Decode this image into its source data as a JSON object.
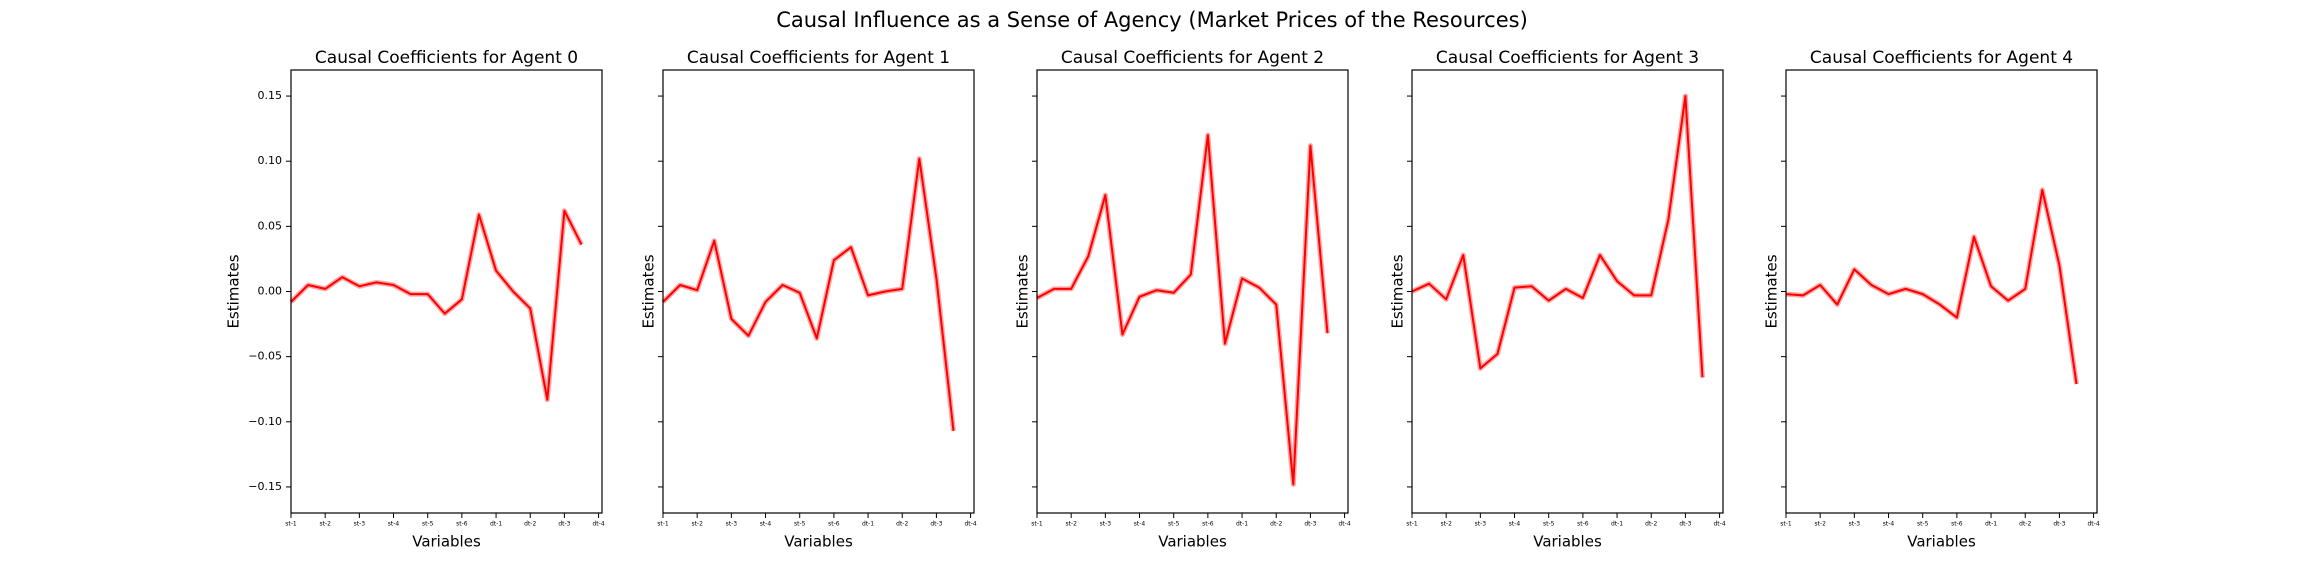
{
  "title": "Causal Influence as a Sense of Agency (Market Prices of the Resources)",
  "chart_data": [
    {
      "type": "line",
      "title": "Causal Coefficients for Agent 0",
      "x_label": "Variables",
      "y_label": "Estimates",
      "ytick_labels": true,
      "x": [
        0,
        1,
        2,
        3,
        4,
        5,
        6,
        7,
        8,
        9,
        10,
        11,
        12,
        13,
        14,
        15,
        16,
        17
      ],
      "xlim": [
        0,
        18.2
      ],
      "ylim": [
        -0.17,
        0.17
      ],
      "xticks": [
        {
          "value": 0,
          "label": "st-1"
        },
        {
          "value": 2,
          "label": "st-2"
        },
        {
          "value": 4,
          "label": "st-3"
        },
        {
          "value": 6,
          "label": "st-4"
        },
        {
          "value": 8,
          "label": "st-5"
        },
        {
          "value": 10,
          "label": "st-6"
        },
        {
          "value": 12,
          "label": "dt-1"
        },
        {
          "value": 14,
          "label": "dt-2"
        },
        {
          "value": 16,
          "label": "dt-3"
        },
        {
          "value": 18,
          "label": "dt-4"
        }
      ],
      "yticks": [
        {
          "value": 0.15,
          "label": "0.15"
        },
        {
          "value": 0.1,
          "label": "0.10"
        },
        {
          "value": 0.05,
          "label": "0.05"
        },
        {
          "value": 0,
          "label": "0.00"
        },
        {
          "value": -0.05,
          "label": "−0.05"
        },
        {
          "value": -0.1,
          "label": "−0.10"
        },
        {
          "value": -0.15,
          "label": "−0.15"
        }
      ],
      "color": "#ff0000",
      "values": [
        -0.008,
        0.005,
        0.002,
        0.011,
        0.004,
        0.007,
        0.005,
        -0.002,
        -0.002,
        -0.017,
        -0.006,
        0.059,
        0.016,
        0.0,
        -0.013,
        -0.083,
        0.062,
        0.036
      ]
    },
    {
      "type": "line",
      "title": "Causal Coefficients for Agent 1",
      "x_label": "Variables",
      "y_label": "Estimates",
      "ytick_labels": false,
      "x": [
        0,
        1,
        2,
        3,
        4,
        5,
        6,
        7,
        8,
        9,
        10,
        11,
        12,
        13,
        14,
        15,
        16,
        17
      ],
      "xlim": [
        0,
        18.2
      ],
      "ylim": [
        -0.17,
        0.17
      ],
      "xticks": [
        {
          "value": 0,
          "label": "st-1"
        },
        {
          "value": 2,
          "label": "st-2"
        },
        {
          "value": 4,
          "label": "st-3"
        },
        {
          "value": 6,
          "label": "st-4"
        },
        {
          "value": 8,
          "label": "st-5"
        },
        {
          "value": 10,
          "label": "st-6"
        },
        {
          "value": 12,
          "label": "dt-1"
        },
        {
          "value": 14,
          "label": "dt-2"
        },
        {
          "value": 16,
          "label": "dt-3"
        },
        {
          "value": 18,
          "label": "dt-4"
        }
      ],
      "yticks": [
        0.15,
        0.1,
        0.05,
        0,
        -0.05,
        -0.1,
        -0.15
      ],
      "color": "#ff0000",
      "values": [
        -0.008,
        0.005,
        0.001,
        0.039,
        -0.021,
        -0.034,
        -0.008,
        0.005,
        -0.001,
        -0.036,
        0.024,
        0.034,
        -0.003,
        0.0,
        0.002,
        0.102,
        0.01,
        -0.107
      ]
    },
    {
      "type": "line",
      "title": "Causal Coefficients for Agent 2",
      "x_label": "Variables",
      "y_label": "Estimates",
      "ytick_labels": false,
      "x": [
        0,
        1,
        2,
        3,
        4,
        5,
        6,
        7,
        8,
        9,
        10,
        11,
        12,
        13,
        14,
        15,
        16,
        17
      ],
      "xlim": [
        0,
        18.2
      ],
      "ylim": [
        -0.17,
        0.17
      ],
      "xticks": [
        {
          "value": 0,
          "label": "st-1"
        },
        {
          "value": 2,
          "label": "st-2"
        },
        {
          "value": 4,
          "label": "st-3"
        },
        {
          "value": 6,
          "label": "st-4"
        },
        {
          "value": 8,
          "label": "st-5"
        },
        {
          "value": 10,
          "label": "st-6"
        },
        {
          "value": 12,
          "label": "dt-1"
        },
        {
          "value": 14,
          "label": "dt-2"
        },
        {
          "value": 16,
          "label": "dt-3"
        },
        {
          "value": 18,
          "label": "dt-4"
        }
      ],
      "yticks": [
        0.15,
        0.1,
        0.05,
        0,
        -0.05,
        -0.1,
        -0.15
      ],
      "color": "#ff0000",
      "values": [
        -0.005,
        0.002,
        0.002,
        0.027,
        0.074,
        -0.033,
        -0.004,
        0.001,
        -0.001,
        0.013,
        0.12,
        -0.04,
        0.01,
        0.003,
        -0.01,
        -0.148,
        0.112,
        -0.032
      ]
    },
    {
      "type": "line",
      "title": "Causal Coefficients for Agent 3",
      "x_label": "Variables",
      "y_label": "Estimates",
      "ytick_labels": false,
      "x": [
        0,
        1,
        2,
        3,
        4,
        5,
        6,
        7,
        8,
        9,
        10,
        11,
        12,
        13,
        14,
        15,
        16,
        17
      ],
      "xlim": [
        0,
        18.2
      ],
      "ylim": [
        -0.17,
        0.17
      ],
      "xticks": [
        {
          "value": 0,
          "label": "st-1"
        },
        {
          "value": 2,
          "label": "st-2"
        },
        {
          "value": 4,
          "label": "st-3"
        },
        {
          "value": 6,
          "label": "st-4"
        },
        {
          "value": 8,
          "label": "st-5"
        },
        {
          "value": 10,
          "label": "st-6"
        },
        {
          "value": 12,
          "label": "dt-1"
        },
        {
          "value": 14,
          "label": "dt-2"
        },
        {
          "value": 16,
          "label": "dt-3"
        },
        {
          "value": 18,
          "label": "dt-4"
        }
      ],
      "yticks": [
        0.15,
        0.1,
        0.05,
        0,
        -0.05,
        -0.1,
        -0.15
      ],
      "color": "#ff0000",
      "values": [
        0.0,
        0.006,
        -0.006,
        0.028,
        -0.059,
        -0.048,
        0.003,
        0.004,
        -0.007,
        0.002,
        -0.005,
        0.028,
        0.008,
        -0.003,
        -0.003,
        0.055,
        0.15,
        -0.066
      ]
    },
    {
      "type": "line",
      "title": "Causal Coefficients for Agent 4",
      "x_label": "Variables",
      "y_label": "Estimates",
      "ytick_labels": false,
      "x": [
        0,
        1,
        2,
        3,
        4,
        5,
        6,
        7,
        8,
        9,
        10,
        11,
        12,
        13,
        14,
        15,
        16,
        17
      ],
      "xlim": [
        0,
        18.2
      ],
      "ylim": [
        -0.17,
        0.17
      ],
      "xticks": [
        {
          "value": 0,
          "label": "st-1"
        },
        {
          "value": 2,
          "label": "st-2"
        },
        {
          "value": 4,
          "label": "st-3"
        },
        {
          "value": 6,
          "label": "st-4"
        },
        {
          "value": 8,
          "label": "st-5"
        },
        {
          "value": 10,
          "label": "st-6"
        },
        {
          "value": 12,
          "label": "dt-1"
        },
        {
          "value": 14,
          "label": "dt-2"
        },
        {
          "value": 16,
          "label": "dt-3"
        },
        {
          "value": 18,
          "label": "dt-4"
        }
      ],
      "yticks": [
        0.15,
        0.1,
        0.05,
        0,
        -0.05,
        -0.1,
        -0.15
      ],
      "color": "#ff0000",
      "values": [
        -0.002,
        -0.003,
        0.005,
        -0.01,
        0.017,
        0.005,
        -0.002,
        0.002,
        -0.002,
        -0.01,
        -0.02,
        0.042,
        0.004,
        -0.007,
        0.002,
        0.078,
        0.02,
        -0.071
      ]
    }
  ]
}
